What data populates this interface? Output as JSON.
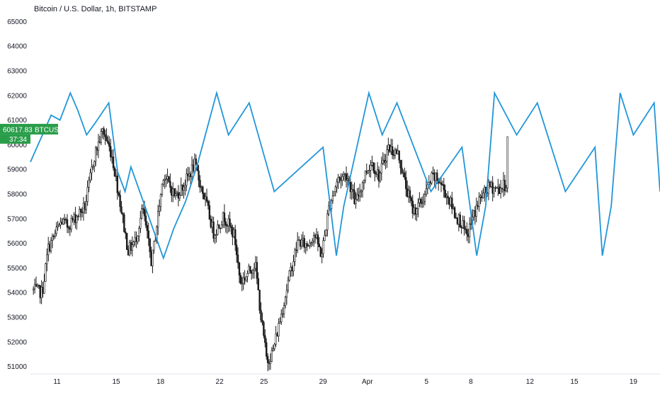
{
  "chart_title": "Bitcoin / U.S. Dollar, 1h, BITSTAMP",
  "price_label": {
    "price": "60617.83",
    "countdown": "37:34",
    "symbol": "BTCUSD",
    "price_value": 60617.83,
    "color": "#2a9d4a"
  },
  "colors": {
    "candle": "#1b1b1b",
    "cycle_line": "#2196d9",
    "background": "#ffffff",
    "axis_text": "#131722"
  },
  "chart_data": {
    "type": "line",
    "title": "Bitcoin / U.S. Dollar, 1h, BITSTAMP",
    "xlabel": "",
    "ylabel": "",
    "ylim": [
      50700,
      65300
    ],
    "y_ticks": [
      51000,
      52000,
      53000,
      54000,
      55000,
      56000,
      57000,
      58000,
      59000,
      60000,
      61000,
      62000,
      63000,
      64000,
      65000
    ],
    "x_ticks": [
      "11",
      "15",
      "18",
      "22",
      "25",
      "29",
      "Apr",
      "5",
      "8",
      "12",
      "15",
      "19"
    ],
    "x_tick_days": [
      11,
      15,
      18,
      22,
      25,
      29,
      32,
      36,
      39,
      43,
      46,
      50
    ],
    "xlim_days": [
      9.2,
      51.8
    ],
    "grid": false,
    "series": [
      {
        "type": "candlestick",
        "interval": "1h",
        "trend_x_days": [
          9.4,
          10.0,
          10.4,
          11.3,
          11.7,
          12.3,
          12.9,
          13.5,
          14.1,
          14.7,
          15.2,
          15.8,
          16.3,
          16.8,
          17.4,
          18.2,
          19.0,
          19.6,
          20.3,
          21.1,
          21.6,
          22.3,
          23.0,
          23.4,
          23.8,
          24.4,
          24.8,
          25.2,
          25.6,
          26.2,
          26.7,
          27.3,
          27.9,
          28.4,
          28.9,
          29.4,
          30.0,
          30.6,
          31.2,
          31.9,
          32.3,
          32.8,
          33.4,
          34.1,
          34.6,
          35.1,
          35.7,
          36.4,
          36.9,
          37.5,
          38.0,
          38.4,
          38.7,
          39.1,
          39.6,
          40.3,
          40.9,
          41.4,
          41.5
        ],
        "trend_close": [
          54100,
          54000,
          55800,
          56900,
          56700,
          57100,
          57500,
          59500,
          60600,
          59600,
          57900,
          55700,
          56100,
          57400,
          55200,
          58800,
          57900,
          58400,
          59200,
          57600,
          56400,
          57100,
          56300,
          54400,
          54700,
          55200,
          53000,
          51200,
          51600,
          53200,
          54600,
          56100,
          55900,
          56400,
          55500,
          57500,
          58600,
          58800,
          57600,
          58900,
          59300,
          58700,
          59900,
          59600,
          58300,
          57300,
          57700,
          58700,
          58500,
          57800,
          57100,
          56800,
          56200,
          57000,
          57800,
          58300,
          58200,
          58400,
          60600
        ]
      },
      {
        "type": "line",
        "x_days": [
          9.2,
          10.6,
          11.2,
          11.9,
          12.4,
          13.0,
          13.6,
          14.5,
          15.1,
          15.6,
          16.0,
          18.2,
          18.9,
          19.7,
          20.5,
          21.8,
          22.6,
          24.0,
          25.7,
          29.0,
          29.9,
          30.4,
          32.1,
          33.0,
          34.0,
          36.3,
          38.4,
          39.4,
          40.0,
          40.6,
          42.1,
          43.5,
          45.4,
          47.4,
          47.9,
          48.5,
          49.1,
          50.0,
          51.4,
          51.8
        ],
        "y": [
          59300,
          61200,
          61000,
          62100,
          61400,
          60400,
          60900,
          61700,
          58900,
          58100,
          59100,
          55400,
          56600,
          57700,
          59200,
          62100,
          60400,
          61700,
          58100,
          59900,
          55500,
          57500,
          62100,
          60400,
          61700,
          58100,
          59900,
          55500,
          57500,
          62100,
          60400,
          61700,
          58100,
          59900,
          55500,
          57500,
          62100,
          60400,
          61700,
          58100
        ]
      }
    ]
  }
}
